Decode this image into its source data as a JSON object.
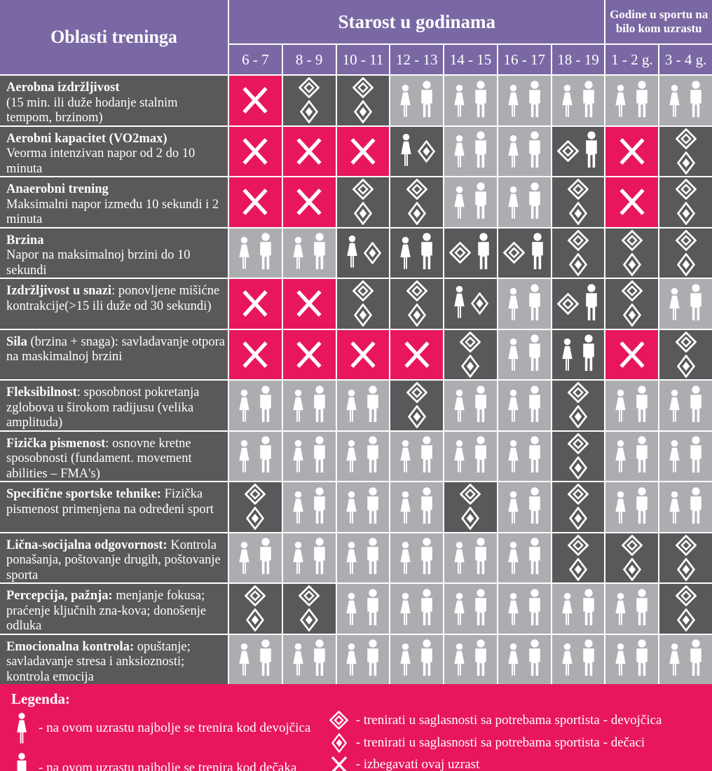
{
  "header": {
    "col1": "Oblasti treninga",
    "age_group": "Starost u godinama",
    "sport_years_group": "Godine u sportu na bilo kom uzrastu",
    "age_columns": [
      "6 - 7",
      "8 - 9",
      "10 - 11",
      "12 - 13",
      "14 - 15",
      "16 - 17",
      "18 - 19",
      "1 - 2 g.",
      "3 - 4 g."
    ]
  },
  "colors": {
    "purple": "#7a68a4",
    "pink": "#e8175d",
    "dark_gray": "#59595b",
    "light_gray": "#abadb0",
    "icon_white": "#ffffff"
  },
  "cell_content_legend": {
    "x": "izbegavati ovaj uzrast",
    "fm": "najbolje se trenira kod devojčica i dečaka",
    "dd": "trenirati u saglasnosti sa potrebama sportista (devojčice i dečaci)",
    "f_bd": "najbolje kod devojčica; dečaci prema potrebama",
    "gd_m": "devojčice prema potrebama; najbolje kod dečaka"
  },
  "rows": [
    {
      "title": "Aerobna izdržljivost",
      "desc": "(15 min. ili duže hodanje stalnim tempom, brzinom)",
      "br": true,
      "cells": [
        {
          "bg": "pink",
          "content": "x"
        },
        {
          "bg": "dark",
          "content": "dd"
        },
        {
          "bg": "dark",
          "content": "dd"
        },
        {
          "bg": "light",
          "content": "fm"
        },
        {
          "bg": "light",
          "content": "fm"
        },
        {
          "bg": "light",
          "content": "fm"
        },
        {
          "bg": "light",
          "content": "fm"
        },
        {
          "bg": "light",
          "content": "fm"
        },
        {
          "bg": "light",
          "content": "fm"
        }
      ]
    },
    {
      "title": "Aerobni kapacitet (VO2max)",
      "desc": "Veorma intenzivan napor od 2 do 10 minuta",
      "br": true,
      "cells": [
        {
          "bg": "pink",
          "content": "x"
        },
        {
          "bg": "pink",
          "content": "x"
        },
        {
          "bg": "pink",
          "content": "x"
        },
        {
          "bg": "dark",
          "content": "f_bd"
        },
        {
          "bg": "light",
          "content": "fm"
        },
        {
          "bg": "light",
          "content": "fm"
        },
        {
          "bg": "dark",
          "content": "gd_m"
        },
        {
          "bg": "pink",
          "content": "x"
        },
        {
          "bg": "dark",
          "content": "dd"
        }
      ]
    },
    {
      "title": "Anaerobni trening",
      "desc": "Maksimalni napor između 10 sekundi i 2 minuta",
      "br": true,
      "cells": [
        {
          "bg": "pink",
          "content": "x"
        },
        {
          "bg": "pink",
          "content": "x"
        },
        {
          "bg": "dark",
          "content": "dd"
        },
        {
          "bg": "dark",
          "content": "dd"
        },
        {
          "bg": "light",
          "content": "fm"
        },
        {
          "bg": "light",
          "content": "fm"
        },
        {
          "bg": "dark",
          "content": "dd"
        },
        {
          "bg": "pink",
          "content": "x"
        },
        {
          "bg": "dark",
          "content": "dd"
        }
      ]
    },
    {
      "title": "Brzina",
      "desc": "Napor na maksimalnoj brzini do 10 sekundi",
      "br": true,
      "cells": [
        {
          "bg": "light",
          "content": "fm"
        },
        {
          "bg": "light",
          "content": "fm"
        },
        {
          "bg": "dark",
          "content": "f_bd"
        },
        {
          "bg": "dark",
          "content": "fm"
        },
        {
          "bg": "dark",
          "content": "gd_m"
        },
        {
          "bg": "dark",
          "content": "gd_m"
        },
        {
          "bg": "dark",
          "content": "dd"
        },
        {
          "bg": "dark",
          "content": "dd"
        },
        {
          "bg": "dark",
          "content": "dd"
        }
      ]
    },
    {
      "title": "Izdržljivost u snazi",
      "desc": ": ponovljene mišićne kontrakcije(>15 ili duže od 30 sekundi)",
      "br": false,
      "cells": [
        {
          "bg": "pink",
          "content": "x"
        },
        {
          "bg": "pink",
          "content": "x"
        },
        {
          "bg": "dark",
          "content": "dd"
        },
        {
          "bg": "dark",
          "content": "dd"
        },
        {
          "bg": "dark",
          "content": "f_bd"
        },
        {
          "bg": "light",
          "content": "fm"
        },
        {
          "bg": "dark",
          "content": "gd_m"
        },
        {
          "bg": "dark",
          "content": "dd"
        },
        {
          "bg": "light",
          "content": "fm"
        }
      ]
    },
    {
      "title": "Sila",
      "desc": " (brzina + snaga): savladavanje otpora na maskimalnoj brzini",
      "br": false,
      "cells": [
        {
          "bg": "pink",
          "content": "x"
        },
        {
          "bg": "pink",
          "content": "x"
        },
        {
          "bg": "pink",
          "content": "x"
        },
        {
          "bg": "pink",
          "content": "x"
        },
        {
          "bg": "dark",
          "content": "dd"
        },
        {
          "bg": "light",
          "content": "fm"
        },
        {
          "bg": "dark",
          "content": "fm"
        },
        {
          "bg": "pink",
          "content": "x"
        },
        {
          "bg": "dark",
          "content": "dd"
        }
      ]
    },
    {
      "title": "Fleksibilnost",
      "desc": ": sposobnost pokretanja zglobova u širokom radijusu (velika amplituda)",
      "br": false,
      "cells": [
        {
          "bg": "light",
          "content": "fm"
        },
        {
          "bg": "light",
          "content": "fm"
        },
        {
          "bg": "light",
          "content": "fm"
        },
        {
          "bg": "dark",
          "content": "dd"
        },
        {
          "bg": "light",
          "content": "fm"
        },
        {
          "bg": "light",
          "content": "fm"
        },
        {
          "bg": "dark",
          "content": "dd"
        },
        {
          "bg": "light",
          "content": "fm"
        },
        {
          "bg": "light",
          "content": "fm"
        }
      ]
    },
    {
      "title": "Fizička pismenost",
      "desc": ": osnovne kretne sposobnosti (fundament. movement abilities – FMA's)",
      "br": false,
      "cells": [
        {
          "bg": "light",
          "content": "fm"
        },
        {
          "bg": "light",
          "content": "fm"
        },
        {
          "bg": "light",
          "content": "fm"
        },
        {
          "bg": "light",
          "content": "fm"
        },
        {
          "bg": "light",
          "content": "fm"
        },
        {
          "bg": "light",
          "content": "fm"
        },
        {
          "bg": "dark",
          "content": "dd"
        },
        {
          "bg": "light",
          "content": "fm"
        },
        {
          "bg": "light",
          "content": "fm"
        }
      ]
    },
    {
      "title": "Specifične sportske tehnike:",
      "desc": " Fizička pismenost primenjena na određeni sport",
      "br": false,
      "cells": [
        {
          "bg": "dark",
          "content": "dd"
        },
        {
          "bg": "light",
          "content": "fm"
        },
        {
          "bg": "light",
          "content": "fm"
        },
        {
          "bg": "light",
          "content": "fm"
        },
        {
          "bg": "dark",
          "content": "dd"
        },
        {
          "bg": "light",
          "content": "fm"
        },
        {
          "bg": "dark",
          "content": "dd"
        },
        {
          "bg": "light",
          "content": "fm"
        },
        {
          "bg": "light",
          "content": "fm"
        }
      ]
    },
    {
      "title": "Lična-socijalna odgovornost:",
      "desc": " Kontrola ponašanja, poštovanje drugih, poštovanje sporta",
      "br": false,
      "cells": [
        {
          "bg": "light",
          "content": "fm"
        },
        {
          "bg": "light",
          "content": "fm"
        },
        {
          "bg": "light",
          "content": "fm"
        },
        {
          "bg": "light",
          "content": "fm"
        },
        {
          "bg": "light",
          "content": "fm"
        },
        {
          "bg": "light",
          "content": "fm"
        },
        {
          "bg": "dark",
          "content": "dd"
        },
        {
          "bg": "dark",
          "content": "dd"
        },
        {
          "bg": "dark",
          "content": "dd"
        }
      ]
    },
    {
      "title": "Percepcija, pažnja:",
      "desc": " menjanje fokusa; praćenje ključnih zna-kova; donošenje odluka",
      "br": false,
      "cells": [
        {
          "bg": "dark",
          "content": "dd"
        },
        {
          "bg": "dark",
          "content": "dd"
        },
        {
          "bg": "light",
          "content": "fm"
        },
        {
          "bg": "light",
          "content": "fm"
        },
        {
          "bg": "light",
          "content": "fm"
        },
        {
          "bg": "light",
          "content": "fm"
        },
        {
          "bg": "light",
          "content": "fm"
        },
        {
          "bg": "light",
          "content": "fm"
        },
        {
          "bg": "dark",
          "content": "dd"
        }
      ]
    },
    {
      "title": "Emocionalna kontrola:",
      "desc": " opuštanje; savladavanje stresa i anksioznosti; kontrola emocija",
      "br": false,
      "cells": [
        {
          "bg": "light",
          "content": "fm"
        },
        {
          "bg": "light",
          "content": "fm"
        },
        {
          "bg": "light",
          "content": "fm"
        },
        {
          "bg": "light",
          "content": "fm"
        },
        {
          "bg": "light",
          "content": "fm"
        },
        {
          "bg": "light",
          "content": "fm"
        },
        {
          "bg": "light",
          "content": "fm"
        },
        {
          "bg": "light",
          "content": "fm"
        },
        {
          "bg": "light",
          "content": "fm"
        }
      ]
    }
  ],
  "legend": {
    "title": "Legenda:",
    "items_left": [
      {
        "icon": "female-icon",
        "text": "- na ovom uzrastu najbolje se trenira kod devojčica"
      },
      {
        "icon": "male-icon",
        "text": "- na ovom uzrastu najbolje se trenira kod dečaka"
      }
    ],
    "items_right": [
      {
        "icon": "girl-diamond-icon",
        "text": "- trenirati u saglasnosti sa potrebama sportista - devojčica"
      },
      {
        "icon": "boy-diamond-icon",
        "text": "- trenirati u saglasnosti sa potrebama sportista - dečaci"
      },
      {
        "icon": "x-icon",
        "text": "- izbegavati ovaj uzrast"
      }
    ]
  }
}
